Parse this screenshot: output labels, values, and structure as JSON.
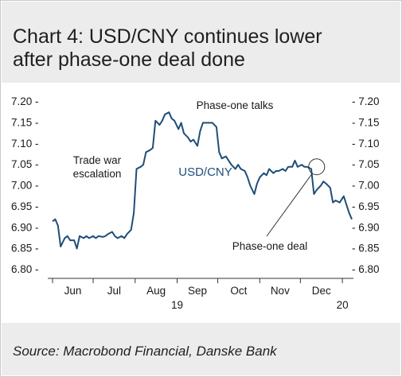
{
  "title_line1": "Chart 4: USD/CNY continues lower",
  "title_line2": "after phase-one deal done",
  "source": "Source: Macrobond Financial, Danske Bank",
  "chart_data": {
    "type": "line",
    "ylim": [
      6.8,
      7.2
    ],
    "yticks": [
      "7.20",
      "7.15",
      "7.10",
      "7.05",
      "7.00",
      "6.95",
      "6.90",
      "6.85",
      "6.80"
    ],
    "xticks": [
      "Jun",
      "Jul",
      "Aug",
      "Sep",
      "Oct",
      "Nov",
      "Dec"
    ],
    "year_labels": [
      "19",
      "20"
    ],
    "grid": false,
    "series": [
      {
        "name": "USD/CNY",
        "color": "#1f4e79",
        "x": [
          "2019-06-01",
          "2019-06-03",
          "2019-06-05",
          "2019-06-07",
          "2019-06-10",
          "2019-06-12",
          "2019-06-14",
          "2019-06-17",
          "2019-06-19",
          "2019-06-21",
          "2019-06-24",
          "2019-06-26",
          "2019-06-28",
          "2019-07-01",
          "2019-07-03",
          "2019-07-05",
          "2019-07-08",
          "2019-07-10",
          "2019-07-12",
          "2019-07-15",
          "2019-07-17",
          "2019-07-19",
          "2019-07-22",
          "2019-07-24",
          "2019-07-26",
          "2019-07-29",
          "2019-07-31",
          "2019-08-02",
          "2019-08-05",
          "2019-08-07",
          "2019-08-09",
          "2019-08-12",
          "2019-08-14",
          "2019-08-16",
          "2019-08-19",
          "2019-08-21",
          "2019-08-23",
          "2019-08-26",
          "2019-08-28",
          "2019-08-30",
          "2019-09-02",
          "2019-09-04",
          "2019-09-06",
          "2019-09-09",
          "2019-09-11",
          "2019-09-13",
          "2019-09-16",
          "2019-09-18",
          "2019-09-20",
          "2019-09-23",
          "2019-09-25",
          "2019-09-27",
          "2019-09-30",
          "2019-10-02",
          "2019-10-04",
          "2019-10-07",
          "2019-10-09",
          "2019-10-11",
          "2019-10-14",
          "2019-10-16",
          "2019-10-18",
          "2019-10-21",
          "2019-10-23",
          "2019-10-25",
          "2019-10-28",
          "2019-10-30",
          "2019-11-01",
          "2019-11-04",
          "2019-11-06",
          "2019-11-08",
          "2019-11-11",
          "2019-11-13",
          "2019-11-15",
          "2019-11-18",
          "2019-11-20",
          "2019-11-22",
          "2019-11-25",
          "2019-11-27",
          "2019-11-29",
          "2019-12-02",
          "2019-12-04",
          "2019-12-06",
          "2019-12-09",
          "2019-12-11",
          "2019-12-13",
          "2019-12-16",
          "2019-12-18",
          "2019-12-20",
          "2019-12-23",
          "2019-12-25",
          "2019-12-27",
          "2019-12-30",
          "2020-01-02",
          "2020-01-06",
          "2020-01-08"
        ],
        "values": [
          6.915,
          6.92,
          6.905,
          6.855,
          6.875,
          6.88,
          6.87,
          6.87,
          6.85,
          6.88,
          6.875,
          6.88,
          6.875,
          6.88,
          6.875,
          6.88,
          6.878,
          6.88,
          6.885,
          6.89,
          6.88,
          6.875,
          6.88,
          6.875,
          6.885,
          6.895,
          6.935,
          7.04,
          7.045,
          7.05,
          7.08,
          7.085,
          7.09,
          7.155,
          7.145,
          7.155,
          7.17,
          7.175,
          7.16,
          7.155,
          7.135,
          7.15,
          7.125,
          7.115,
          7.105,
          7.11,
          7.095,
          7.13,
          7.15,
          7.15,
          7.15,
          7.15,
          7.14,
          7.08,
          7.065,
          7.07,
          7.06,
          7.05,
          7.04,
          7.05,
          7.04,
          7.035,
          7.02,
          7.0,
          6.98,
          7.005,
          7.02,
          7.03,
          7.025,
          7.04,
          7.03,
          7.035,
          7.035,
          7.04,
          7.035,
          7.045,
          7.045,
          7.06,
          7.045,
          7.05,
          7.045,
          7.045,
          7.04,
          6.98,
          6.99,
          7.0,
          7.01,
          7.005,
          6.995,
          6.96,
          6.965,
          6.96,
          6.975,
          6.935,
          6.92
        ]
      }
    ],
    "annotations": [
      {
        "text": "Phase-one talks"
      },
      {
        "text": "Trade war escalation",
        "lines": [
          "Trade war",
          "escalation"
        ]
      },
      {
        "text": "USD/CNY"
      },
      {
        "text": "Phase-one deal"
      }
    ]
  }
}
